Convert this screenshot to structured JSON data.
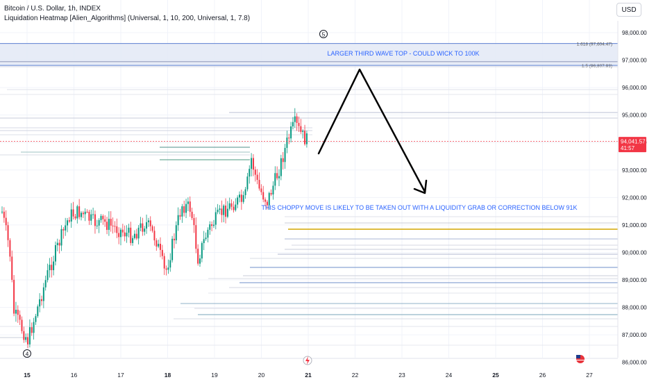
{
  "header": {
    "symbol_line": "Bitcoin / U.S. Dollar, 1h, INDEX",
    "indicator_line": "Liquidation Heatmap [Alien_Algorithms] (Universal, 1, 10, 200, Universal, 1, 7.8)"
  },
  "currency_label": "USD",
  "price_axis": {
    "ticks": [
      "98,000.00",
      "97,000.00",
      "96,000.00",
      "95,000.00",
      "94,000.00",
      "93,000.00",
      "92,000.00",
      "91,000.00",
      "90,000.00",
      "89,000.00",
      "88,000.00",
      "87,000.00",
      "86,000.00"
    ],
    "current_price": "94,041.57",
    "countdown": "41:57",
    "colors": {
      "current_price_bg": "#f23645"
    }
  },
  "time_axis": {
    "ticks": [
      "15",
      "16",
      "17",
      "18",
      "19",
      "20",
      "21",
      "22",
      "23",
      "24",
      "25",
      "26",
      "27"
    ],
    "bold_ticks": [
      "15",
      "18",
      "21",
      "25"
    ]
  },
  "fib_levels": [
    {
      "label": "1.618 (97,604.47)",
      "price": 97604.47
    },
    {
      "label": "1.5 (96,807.93)",
      "price": 96807.93
    }
  ],
  "wave_labels": [
    {
      "text": "5",
      "time": 21.35,
      "price": 97950
    },
    {
      "text": "4",
      "time": 15.0,
      "price": 86100
    }
  ],
  "annotations": {
    "top_text": "LARGER THIRD WAVE TOP - COULD WICK TO 100K",
    "bottom_text": "THIS CHOPPY MOVE IS LIKELY TO BE TAKEN OUT WITH A LIQUIDITY GRAB OR CORRECTION BELOW 91K",
    "color": "#2962ff"
  },
  "icons": {
    "lightning": "lightning-icon",
    "flag": "us-flag-icon"
  },
  "colors": {
    "up": "#089981",
    "down": "#f23645",
    "yellow_level": "#d4a600",
    "grid": "#f0f3fa"
  }
}
